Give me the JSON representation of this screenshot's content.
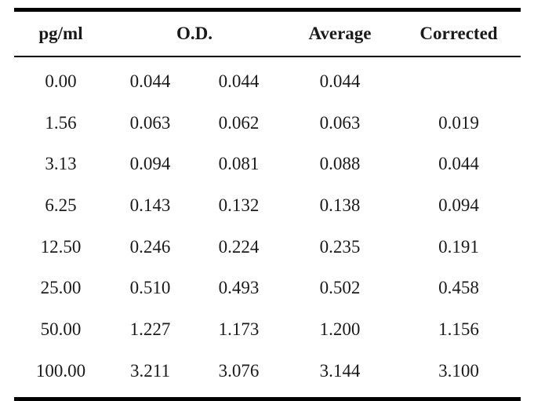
{
  "table": {
    "headers": {
      "concentration": "pg/ml",
      "od": "O.D.",
      "average": "Average",
      "corrected": "Corrected"
    },
    "rows": [
      {
        "conc": "0.00",
        "od1": "0.044",
        "od2": "0.044",
        "avg": "0.044",
        "corr": ""
      },
      {
        "conc": "1.56",
        "od1": "0.063",
        "od2": "0.062",
        "avg": "0.063",
        "corr": "0.019"
      },
      {
        "conc": "3.13",
        "od1": "0.094",
        "od2": "0.081",
        "avg": "0.088",
        "corr": "0.044"
      },
      {
        "conc": "6.25",
        "od1": "0.143",
        "od2": "0.132",
        "avg": "0.138",
        "corr": "0.094"
      },
      {
        "conc": "12.50",
        "od1": "0.246",
        "od2": "0.224",
        "avg": "0.235",
        "corr": "0.191"
      },
      {
        "conc": "25.00",
        "od1": "0.510",
        "od2": "0.493",
        "avg": "0.502",
        "corr": "0.458"
      },
      {
        "conc": "50.00",
        "od1": "1.227",
        "od2": "1.173",
        "avg": "1.200",
        "corr": "1.156"
      },
      {
        "conc": "100.00",
        "od1": "3.211",
        "od2": "3.076",
        "avg": "3.144",
        "corr": "3.100"
      }
    ]
  }
}
